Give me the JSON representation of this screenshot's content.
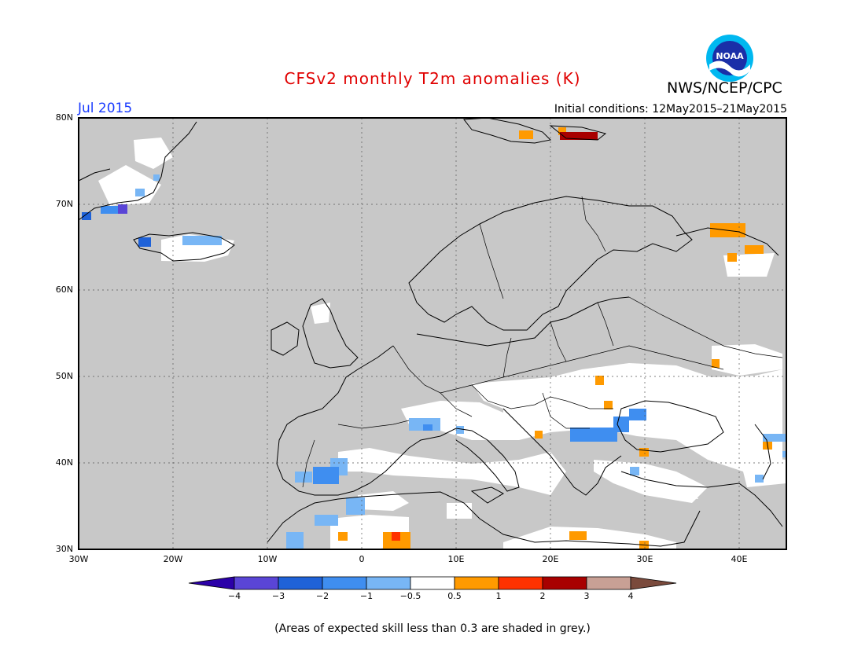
{
  "title": "CFSv2 monthly T2m anomalies (K)",
  "agency": "NWS/NCEP/CPC",
  "logo_text": "NOAA",
  "target_month": "Jul 2015",
  "initial_conditions": "Initial conditions: 12May2015–21May2015",
  "note": "(Areas of expected skill less than 0.3 are shaded in grey.)",
  "lat_labels": [
    "80N",
    "70N",
    "60N",
    "50N",
    "40N",
    "30N"
  ],
  "lon_labels": [
    "30W",
    "20W",
    "10W",
    "0",
    "10E",
    "20E",
    "30E",
    "40E"
  ],
  "colorbar": {
    "labels": [
      "−4",
      "−3",
      "−2",
      "−1",
      "−0.5",
      "0.5",
      "1",
      "2",
      "3",
      "4"
    ],
    "colors": [
      "#2b00a8",
      "#5a45d6",
      "#1f62d8",
      "#3f8ef0",
      "#78b6f5",
      "#ffffff",
      "#ff9a00",
      "#ff3200",
      "#a80000",
      "#c8a095",
      "#7a4a3c"
    ]
  },
  "map_colors": {
    "skill_low_grey": "#c8c8c8",
    "near_zero_white": "#ffffff"
  }
}
